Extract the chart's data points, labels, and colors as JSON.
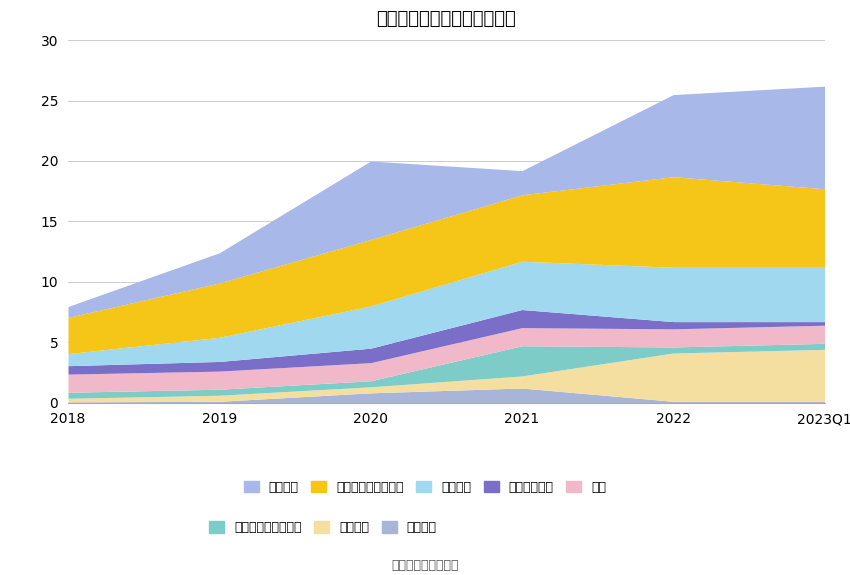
{
  "title": "历年主要资产堆积图（亿元）",
  "x_labels": [
    "2018",
    "2019",
    "2020",
    "2021",
    "2022",
    "2023Q1"
  ],
  "x_values": [
    0,
    1,
    2,
    3,
    4,
    5
  ],
  "ylim": [
    0,
    30
  ],
  "yticks": [
    0,
    5,
    10,
    15,
    20,
    25,
    30
  ],
  "source": "数据来源：恒生聚源",
  "series": [
    {
      "name": "在建工程",
      "color": "#a8b4d8",
      "values": [
        0.05,
        0.1,
        0.8,
        1.2,
        0.1,
        0.1
      ]
    },
    {
      "name": "固定资产",
      "color": "#f5dfa0",
      "values": [
        0.3,
        0.5,
        0.5,
        1.0,
        4.0,
        4.3
      ]
    },
    {
      "name": "交易性金融资产合计",
      "color": "#7eccc8",
      "values": [
        0.5,
        0.5,
        0.5,
        2.5,
        0.5,
        0.5
      ]
    },
    {
      "name": "存货",
      "color": "#f0b8c8",
      "values": [
        1.5,
        1.5,
        1.5,
        1.5,
        1.5,
        1.5
      ]
    },
    {
      "name": "应收款项融资",
      "color": "#7b6ec8",
      "values": [
        0.7,
        0.8,
        1.2,
        1.5,
        0.6,
        0.3
      ]
    },
    {
      "name": "合同资产",
      "color": "#a0d8ef",
      "values": [
        1.0,
        2.0,
        3.5,
        4.0,
        4.5,
        4.5
      ]
    },
    {
      "name": "应收账款及应收票据",
      "color": "#f5c518",
      "values": [
        3.0,
        4.5,
        5.5,
        5.5,
        7.5,
        6.5
      ]
    },
    {
      "name": "货币资金",
      "color": "#a8b8e8",
      "values": [
        0.9,
        2.5,
        6.5,
        2.0,
        6.8,
        8.5
      ]
    }
  ],
  "legend_order": [
    {
      "name": "货币资金",
      "color": "#a8b8e8"
    },
    {
      "name": "应收账款及应收票据",
      "color": "#f5c518"
    },
    {
      "name": "合同资产",
      "color": "#a0d8ef"
    },
    {
      "name": "应收款项融资",
      "color": "#7b6ec8"
    },
    {
      "name": "存货",
      "color": "#f0b8c8"
    },
    {
      "name": "交易性金融资产合计",
      "color": "#7eccc8"
    },
    {
      "name": "固定资产",
      "color": "#f5dfa0"
    },
    {
      "name": "在建工程",
      "color": "#a8b4d8"
    }
  ],
  "background_color": "#ffffff",
  "grid_color": "#cccccc",
  "legend_fontsize": 9,
  "title_fontsize": 13
}
